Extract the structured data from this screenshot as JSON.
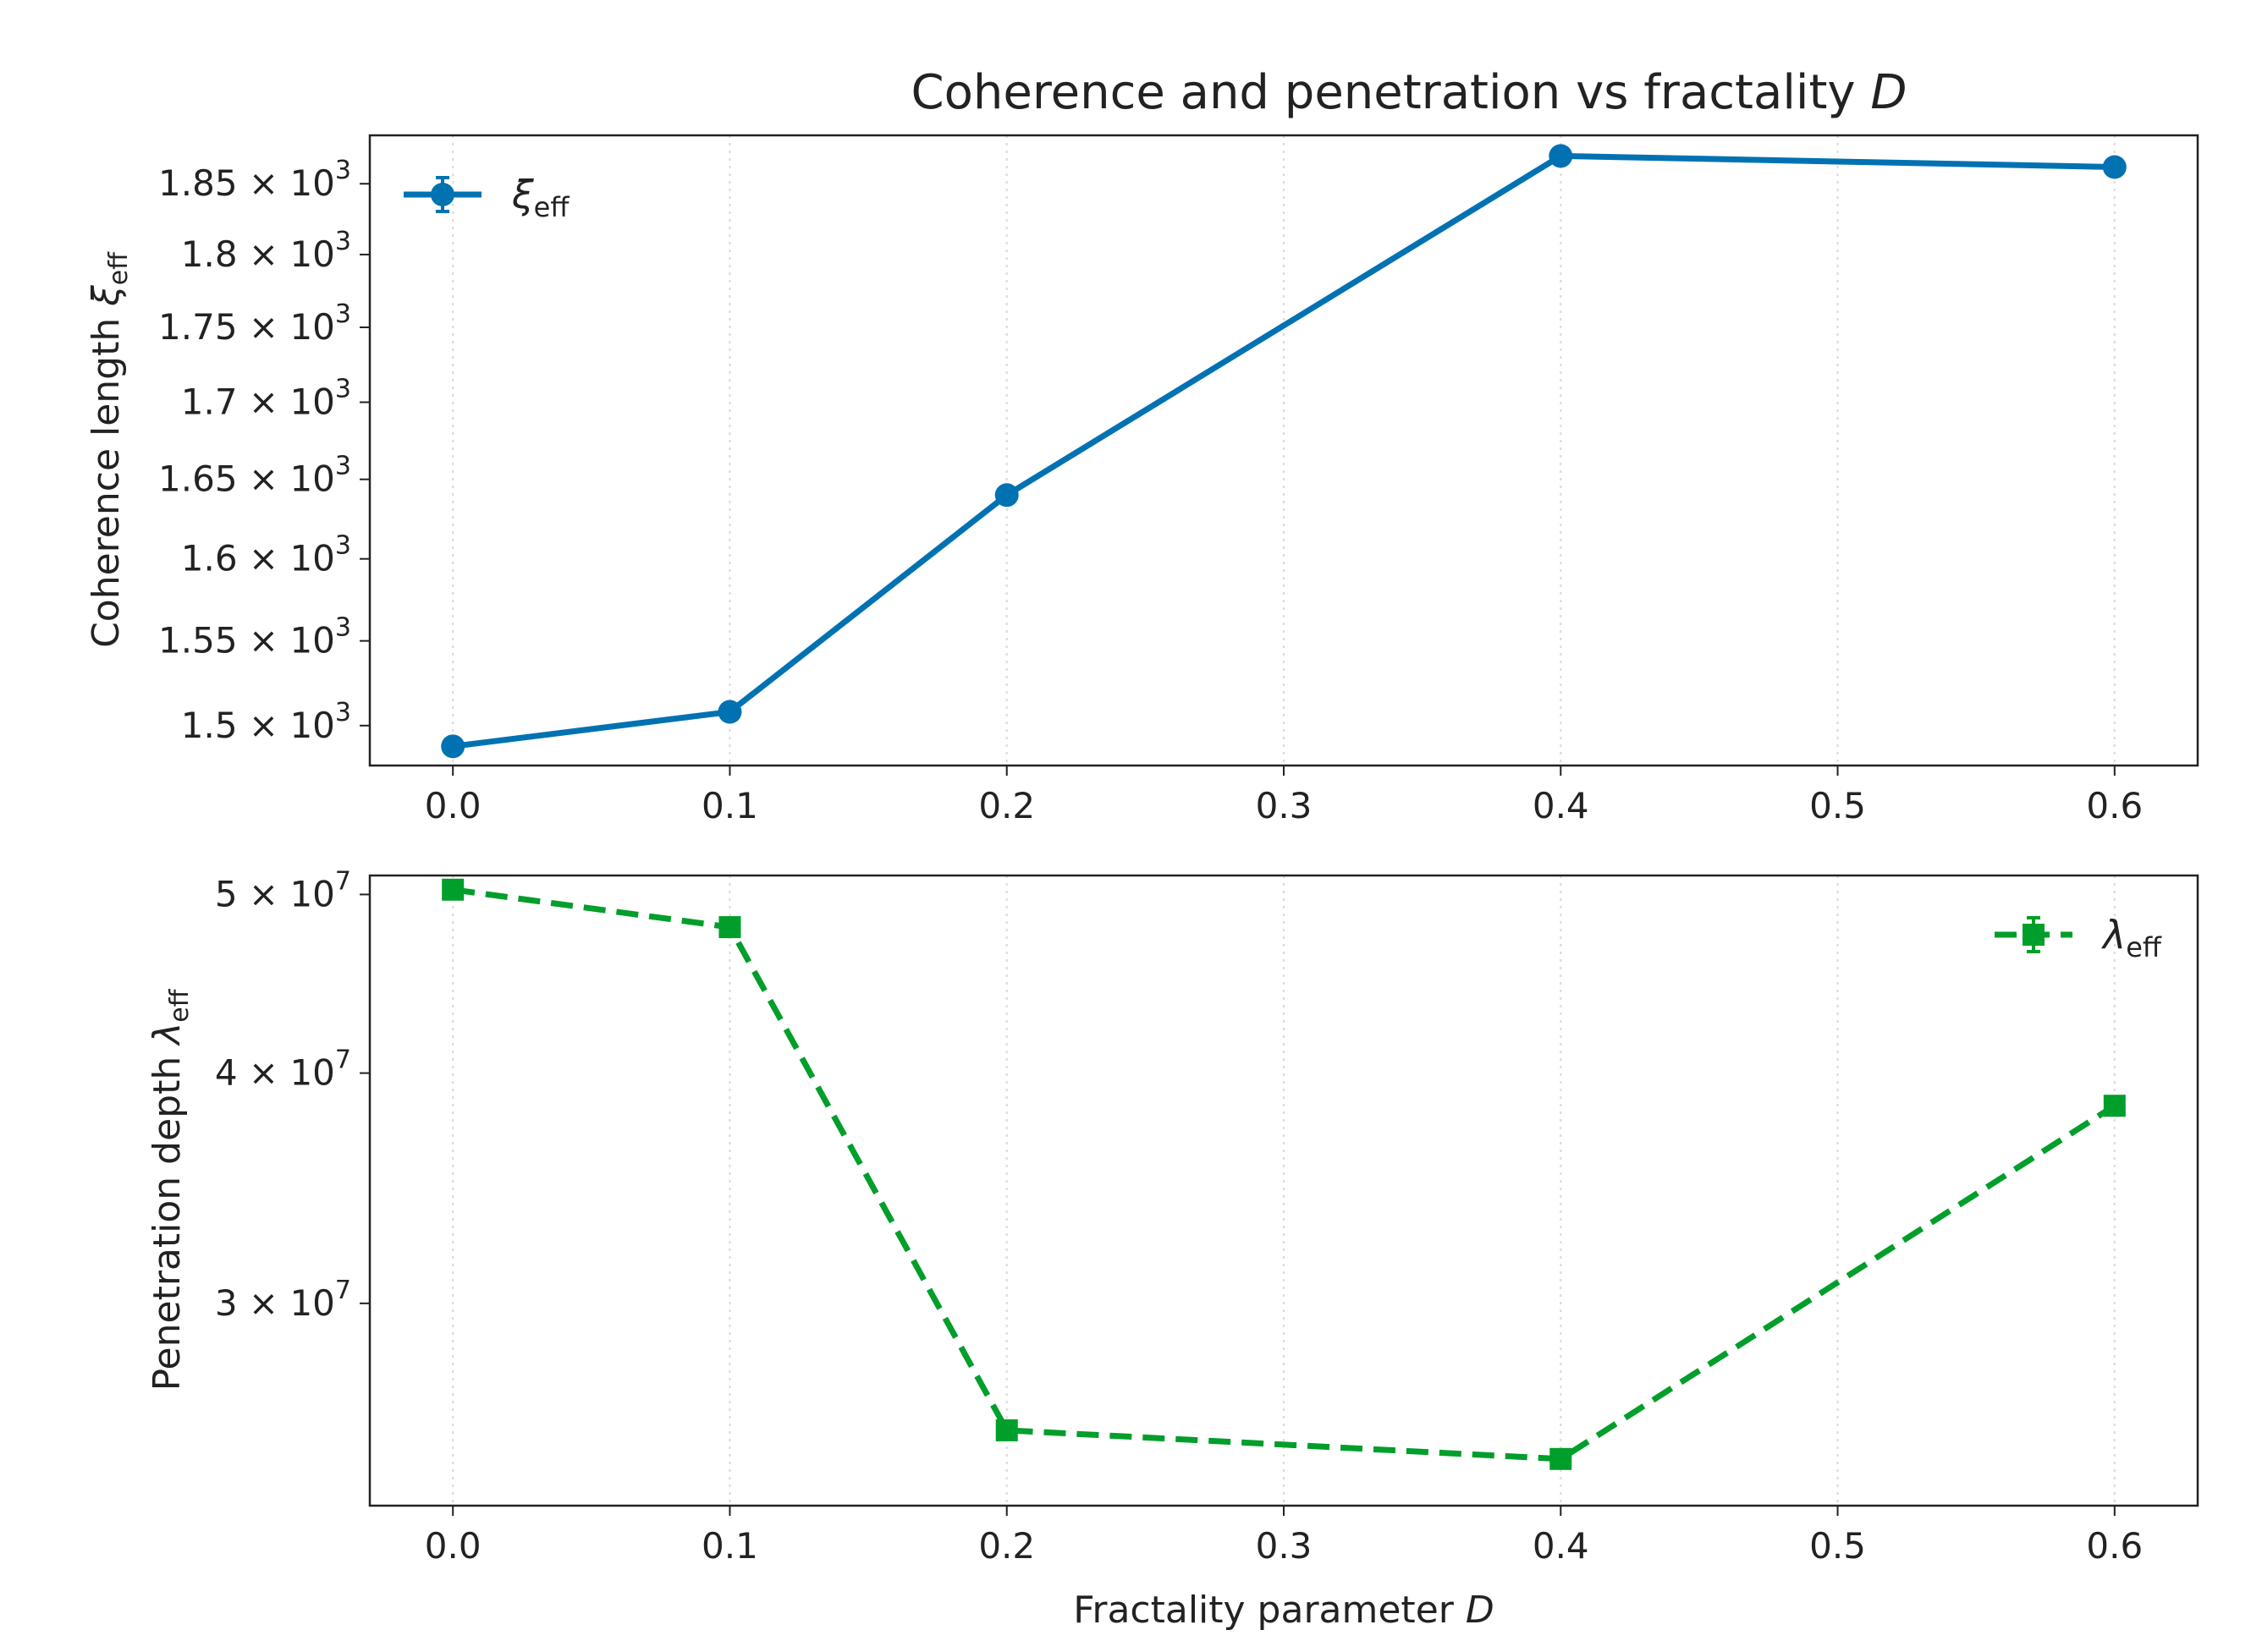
{
  "chart_data": [
    {
      "type": "line",
      "title": "Coherence and penetration vs fractality ",
      "title_symbol": "D",
      "ylabel": "Coherence length  ",
      "ylabel_symbol": "ξ",
      "ylabel_sub": "eff",
      "xlabel": "",
      "yscale": "log",
      "ylim": [
        1477,
        1885
      ],
      "xlim": [
        -0.03,
        0.63
      ],
      "xticks": [
        "0.0",
        "0.1",
        "0.2",
        "0.3",
        "0.4",
        "0.5",
        "0.6"
      ],
      "xtick_values": [
        0.0,
        0.1,
        0.2,
        0.3,
        0.4,
        0.5,
        0.6
      ],
      "yticks": [
        {
          "value": 1500,
          "mant": "1.5",
          "exp": "3"
        },
        {
          "value": 1550,
          "mant": "1.55",
          "exp": "3"
        },
        {
          "value": 1600,
          "mant": "1.6",
          "exp": "3"
        },
        {
          "value": 1650,
          "mant": "1.65",
          "exp": "3"
        },
        {
          "value": 1700,
          "mant": "1.7",
          "exp": "3"
        },
        {
          "value": 1750,
          "mant": "1.75",
          "exp": "3"
        },
        {
          "value": 1800,
          "mant": "1.8",
          "exp": "3"
        },
        {
          "value": 1850,
          "mant": "1.85",
          "exp": "3"
        }
      ],
      "grid": "vertical-dotted",
      "legend_position": "upper-left",
      "series": [
        {
          "name_symbol": "ξ",
          "name_sub": "eff",
          "color": "#0072B2",
          "marker": "circle",
          "linestyle": "solid",
          "x": [
            0.0,
            0.1,
            0.2,
            0.4,
            0.6
          ],
          "y": [
            1488,
            1508,
            1640,
            1870,
            1862
          ]
        }
      ]
    },
    {
      "type": "line",
      "title": "",
      "ylabel": "Penetration depth  ",
      "ylabel_symbol": "λ",
      "ylabel_sub": "eff",
      "xlabel": "Fractality parameter ",
      "xlabel_symbol": "D",
      "yscale": "log",
      "ylim": [
        23300000,
        51200000
      ],
      "xlim": [
        -0.03,
        0.63
      ],
      "xticks": [
        "0.0",
        "0.1",
        "0.2",
        "0.3",
        "0.4",
        "0.5",
        "0.6"
      ],
      "xtick_values": [
        0.0,
        0.1,
        0.2,
        0.3,
        0.4,
        0.5,
        0.6
      ],
      "yticks": [
        {
          "value": 30000000,
          "mant": "3",
          "exp": "7"
        },
        {
          "value": 40000000,
          "mant": "4",
          "exp": "7"
        },
        {
          "value": 50000000,
          "mant": "5",
          "exp": "7"
        }
      ],
      "grid": "vertical-dotted",
      "legend_position": "upper-right",
      "series": [
        {
          "name_symbol": "λ",
          "name_sub": "eff",
          "color": "#009E2A",
          "marker": "square",
          "linestyle": "dashed",
          "x": [
            0.0,
            0.1,
            0.2,
            0.4,
            0.6
          ],
          "y": [
            50300000,
            48000000,
            25600000,
            24700000,
            38400000
          ]
        }
      ]
    }
  ]
}
